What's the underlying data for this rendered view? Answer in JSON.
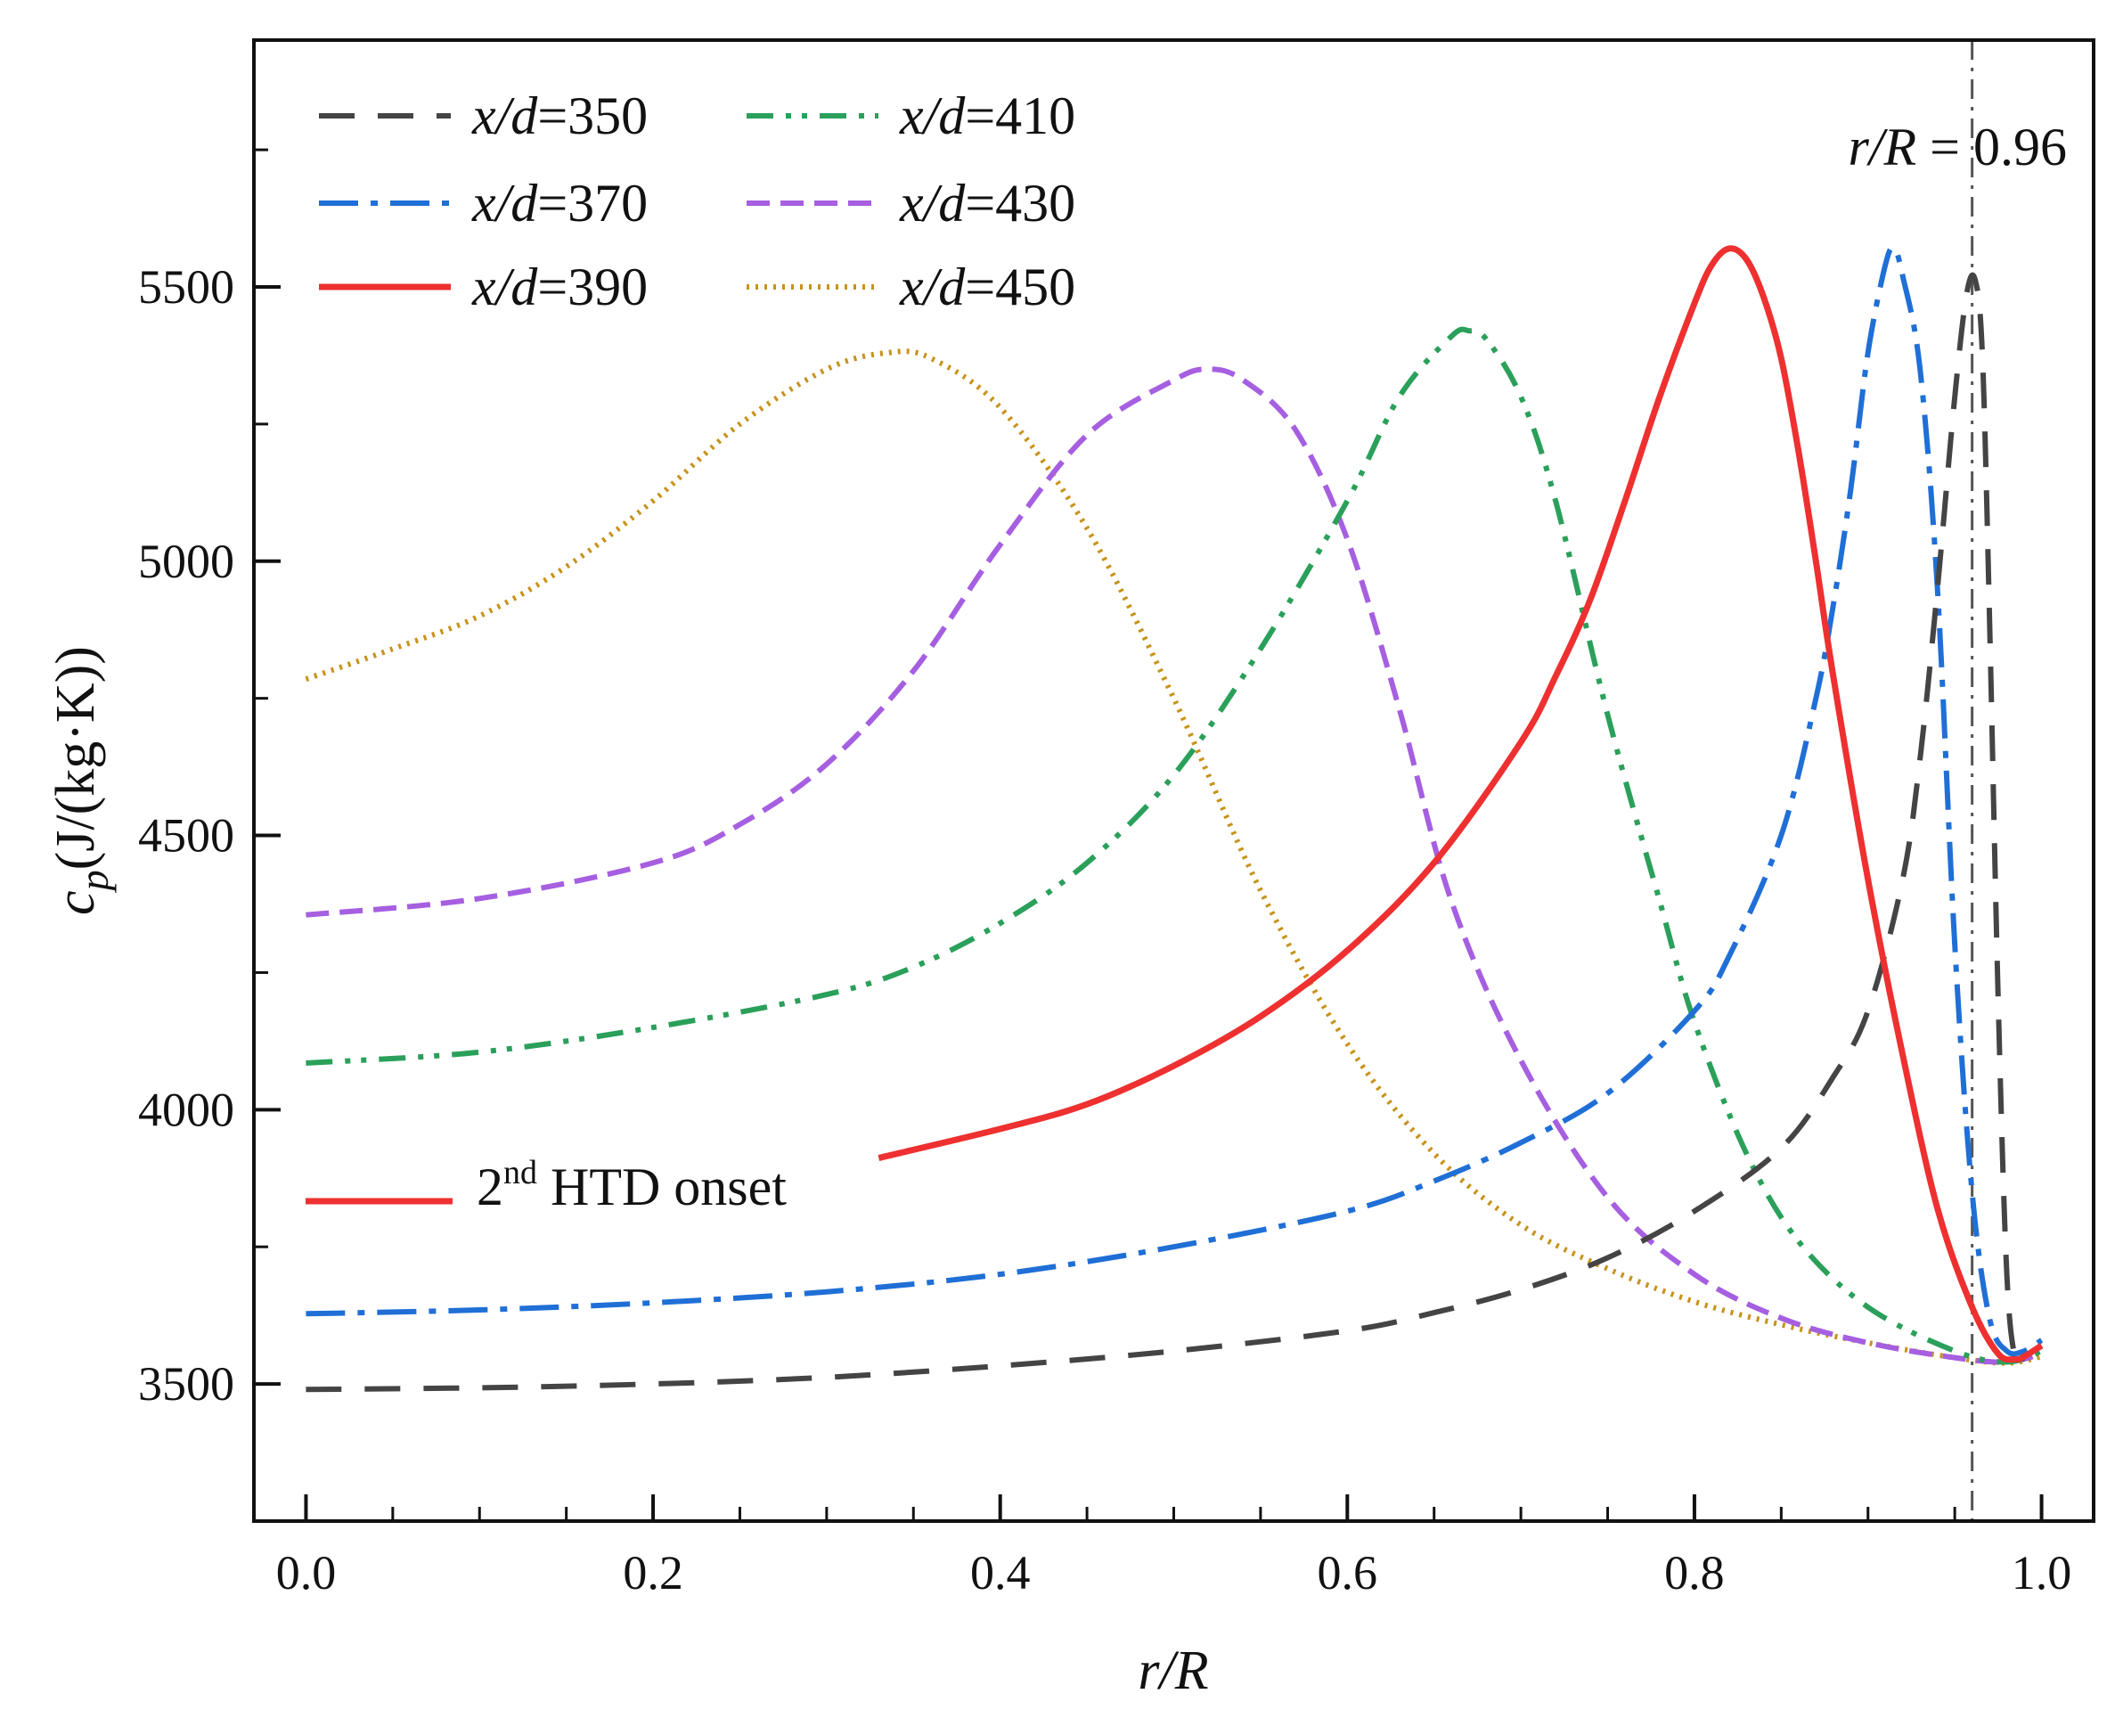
{
  "chart_data": {
    "type": "line",
    "xlabel": "r/R",
    "ylabel": "c_p (J/(kg·K))",
    "ylabel_parts": {
      "symbol": "c",
      "sub": "p",
      "unit": "(J/(kg·K))"
    },
    "xlim": [
      -0.03,
      1.03
    ],
    "ylim": [
      3250,
      5950
    ],
    "xticks": [
      0.0,
      0.2,
      0.4,
      0.6,
      0.8,
      1.0
    ],
    "xtick_labels": [
      "0.0",
      "0.2",
      "0.4",
      "0.6",
      "0.8",
      "1.0"
    ],
    "xminor_step": 0.05,
    "yticks": [
      3500,
      4000,
      4500,
      5000,
      5500
    ],
    "ytick_labels": [
      "3500",
      "4000",
      "4500",
      "5000",
      "5500"
    ],
    "yminor_step": 250,
    "grid": false,
    "legend_position": "top-left",
    "series": [
      {
        "name": "x/d=350",
        "label_italic": "x/d",
        "label_value": "=350",
        "color": "#444444",
        "dash": "40 26",
        "width": 6,
        "points": [
          [
            0,
            3490
          ],
          [
            0.1,
            3493
          ],
          [
            0.2,
            3500
          ],
          [
            0.3,
            3512
          ],
          [
            0.4,
            3533
          ],
          [
            0.5,
            3560
          ],
          [
            0.6,
            3597
          ],
          [
            0.65,
            3630
          ],
          [
            0.7,
            3672
          ],
          [
            0.75,
            3730
          ],
          [
            0.8,
            3815
          ],
          [
            0.85,
            3930
          ],
          [
            0.88,
            4060
          ],
          [
            0.9,
            4180
          ],
          [
            0.92,
            4420
          ],
          [
            0.93,
            4640
          ],
          [
            0.94,
            4950
          ],
          [
            0.95,
            5300
          ],
          [
            0.957,
            5490
          ],
          [
            0.962,
            5510
          ],
          [
            0.966,
            5370
          ],
          [
            0.97,
            4900
          ],
          [
            0.975,
            4200
          ],
          [
            0.98,
            3700
          ],
          [
            0.985,
            3545
          ],
          [
            0.99,
            3550
          ],
          [
            0.995,
            3560
          ],
          [
            1.0,
            3570
          ]
        ]
      },
      {
        "name": "x/d=370",
        "label_italic": "x/d",
        "label_value": "=370",
        "color": "#1f6fd6",
        "dash": "44 14 8 14",
        "width": 6,
        "points": [
          [
            0,
            3628
          ],
          [
            0.1,
            3635
          ],
          [
            0.2,
            3648
          ],
          [
            0.3,
            3668
          ],
          [
            0.4,
            3700
          ],
          [
            0.5,
            3750
          ],
          [
            0.6,
            3815
          ],
          [
            0.65,
            3870
          ],
          [
            0.7,
            3940
          ],
          [
            0.75,
            4030
          ],
          [
            0.8,
            4180
          ],
          [
            0.82,
            4280
          ],
          [
            0.85,
            4500
          ],
          [
            0.87,
            4750
          ],
          [
            0.88,
            4920
          ],
          [
            0.89,
            5130
          ],
          [
            0.9,
            5380
          ],
          [
            0.91,
            5540
          ],
          [
            0.915,
            5570
          ],
          [
            0.92,
            5520
          ],
          [
            0.93,
            5350
          ],
          [
            0.94,
            4950
          ],
          [
            0.95,
            4300
          ],
          [
            0.96,
            3850
          ],
          [
            0.97,
            3620
          ],
          [
            0.98,
            3560
          ],
          [
            0.99,
            3560
          ],
          [
            1.0,
            3580
          ]
        ]
      },
      {
        "name": "x/d=390",
        "label_italic": "x/d",
        "label_value": "=390",
        "color": "#ee3030",
        "dash": "",
        "width": 7,
        "points": [
          [
            0.33,
            3912
          ],
          [
            0.4,
            3965
          ],
          [
            0.45,
            4010
          ],
          [
            0.5,
            4080
          ],
          [
            0.55,
            4170
          ],
          [
            0.6,
            4290
          ],
          [
            0.65,
            4450
          ],
          [
            0.7,
            4670
          ],
          [
            0.72,
            4790
          ],
          [
            0.74,
            4930
          ],
          [
            0.76,
            5110
          ],
          [
            0.78,
            5300
          ],
          [
            0.8,
            5470
          ],
          [
            0.81,
            5540
          ],
          [
            0.82,
            5570
          ],
          [
            0.83,
            5550
          ],
          [
            0.84,
            5480
          ],
          [
            0.85,
            5370
          ],
          [
            0.86,
            5200
          ],
          [
            0.87,
            5000
          ],
          [
            0.88,
            4790
          ],
          [
            0.9,
            4420
          ],
          [
            0.92,
            4100
          ],
          [
            0.94,
            3820
          ],
          [
            0.96,
            3640
          ],
          [
            0.975,
            3555
          ],
          [
            0.985,
            3545
          ],
          [
            0.99,
            3550
          ],
          [
            1.0,
            3570
          ]
        ]
      },
      {
        "name": "x/d=410",
        "label_italic": "x/d",
        "label_value": "=410",
        "color": "#2aa05a",
        "dash": "30 14 6 12 6 14",
        "width": 6,
        "points": [
          [
            0,
            4085
          ],
          [
            0.1,
            4105
          ],
          [
            0.2,
            4150
          ],
          [
            0.3,
            4210
          ],
          [
            0.35,
            4260
          ],
          [
            0.4,
            4340
          ],
          [
            0.45,
            4450
          ],
          [
            0.5,
            4610
          ],
          [
            0.55,
            4840
          ],
          [
            0.6,
            5110
          ],
          [
            0.63,
            5300
          ],
          [
            0.66,
            5410
          ],
          [
            0.67,
            5420
          ],
          [
            0.68,
            5405
          ],
          [
            0.7,
            5300
          ],
          [
            0.72,
            5110
          ],
          [
            0.75,
            4720
          ],
          [
            0.78,
            4380
          ],
          [
            0.8,
            4160
          ],
          [
            0.83,
            3920
          ],
          [
            0.86,
            3760
          ],
          [
            0.9,
            3640
          ],
          [
            0.95,
            3560
          ],
          [
            0.98,
            3540
          ],
          [
            1.0,
            3560
          ]
        ]
      },
      {
        "name": "x/d=430",
        "label_italic": "x/d",
        "label_value": "=430",
        "color": "#a65fe0",
        "dash": "26 12",
        "width": 6,
        "points": [
          [
            0,
            4355
          ],
          [
            0.1,
            4385
          ],
          [
            0.2,
            4450
          ],
          [
            0.25,
            4520
          ],
          [
            0.3,
            4630
          ],
          [
            0.35,
            4800
          ],
          [
            0.4,
            5030
          ],
          [
            0.45,
            5230
          ],
          [
            0.5,
            5330
          ],
          [
            0.52,
            5350
          ],
          [
            0.54,
            5330
          ],
          [
            0.57,
            5240
          ],
          [
            0.6,
            5040
          ],
          [
            0.63,
            4730
          ],
          [
            0.66,
            4380
          ],
          [
            0.7,
            4090
          ],
          [
            0.75,
            3840
          ],
          [
            0.8,
            3700
          ],
          [
            0.85,
            3620
          ],
          [
            0.9,
            3575
          ],
          [
            0.95,
            3548
          ],
          [
            0.98,
            3540
          ],
          [
            1.0,
            3555
          ]
        ]
      },
      {
        "name": "x/d=450",
        "label_italic": "x/d",
        "label_value": "=450",
        "color": "#c8921a",
        "dash": "3 7",
        "width": 6,
        "points": [
          [
            0,
            4785
          ],
          [
            0.05,
            4840
          ],
          [
            0.1,
            4900
          ],
          [
            0.15,
            4990
          ],
          [
            0.2,
            5110
          ],
          [
            0.25,
            5250
          ],
          [
            0.3,
            5350
          ],
          [
            0.335,
            5380
          ],
          [
            0.36,
            5370
          ],
          [
            0.4,
            5280
          ],
          [
            0.45,
            5060
          ],
          [
            0.5,
            4750
          ],
          [
            0.55,
            4400
          ],
          [
            0.6,
            4120
          ],
          [
            0.65,
            3920
          ],
          [
            0.7,
            3790
          ],
          [
            0.75,
            3710
          ],
          [
            0.8,
            3650
          ],
          [
            0.85,
            3608
          ],
          [
            0.9,
            3575
          ],
          [
            0.95,
            3548
          ],
          [
            0.98,
            3538
          ],
          [
            1.0,
            3550
          ]
        ]
      }
    ],
    "annotations": [
      {
        "name": "vline",
        "label_italic": "r/R",
        "label_value": " = 0.96",
        "x": 0.96,
        "color": "#555555"
      },
      {
        "name": "htd-onset",
        "label_main": "2",
        "label_sup": "nd",
        "label_rest": " HTD onset",
        "color": "#ee3030"
      }
    ]
  }
}
